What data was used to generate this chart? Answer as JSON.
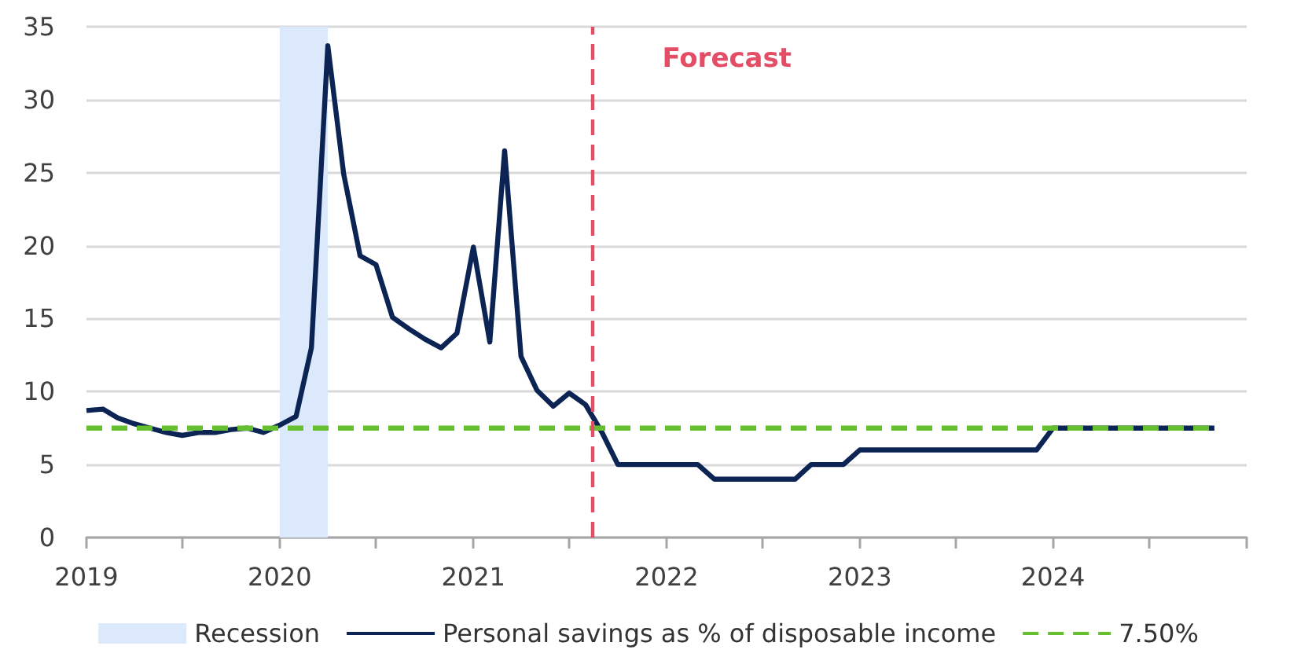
{
  "chart_data": {
    "type": "line",
    "x": [
      "2019-01",
      "2019-02",
      "2019-03",
      "2019-04",
      "2019-05",
      "2019-06",
      "2019-07",
      "2019-08",
      "2019-09",
      "2019-10",
      "2019-11",
      "2019-12",
      "2020-01",
      "2020-02",
      "2020-03",
      "2020-04",
      "2020-05",
      "2020-06",
      "2020-07",
      "2020-08",
      "2020-09",
      "2020-10",
      "2020-11",
      "2020-12",
      "2021-01",
      "2021-02",
      "2021-03",
      "2021-04",
      "2021-05",
      "2021-06",
      "2021-07",
      "2021-08",
      "2021-09",
      "2021-10",
      "2021-11",
      "2021-12",
      "2022-01",
      "2022-02",
      "2022-03",
      "2022-04",
      "2022-05",
      "2022-06",
      "2022-07",
      "2022-08",
      "2022-09",
      "2022-10",
      "2022-11",
      "2022-12",
      "2023-01",
      "2023-02",
      "2023-03",
      "2023-04",
      "2023-05",
      "2023-06",
      "2023-07",
      "2023-08",
      "2023-09",
      "2023-10",
      "2023-11",
      "2023-12",
      "2024-01",
      "2024-02",
      "2024-03",
      "2024-04",
      "2024-05",
      "2024-06",
      "2024-07",
      "2024-08",
      "2024-09",
      "2024-10",
      "2024-11"
    ],
    "series": [
      {
        "name": "Personal savings as % of disposable income",
        "color": "#0b2454",
        "values": [
          8.7,
          8.8,
          8.2,
          7.8,
          7.5,
          7.2,
          7.0,
          7.2,
          7.2,
          7.4,
          7.5,
          7.2,
          7.7,
          8.3,
          13.0,
          33.7,
          24.9,
          19.3,
          18.7,
          15.1,
          14.3,
          13.6,
          13.0,
          14.0,
          19.9,
          13.4,
          26.5,
          12.4,
          10.1,
          9.0,
          9.9,
          9.1,
          7.2,
          5.0,
          5.0,
          5.0,
          5.0,
          5.0,
          5.0,
          4.0,
          4.0,
          4.0,
          4.0,
          4.0,
          4.0,
          5.0,
          5.0,
          5.0,
          6.0,
          6.0,
          6.0,
          6.0,
          6.0,
          6.0,
          6.0,
          6.0,
          6.0,
          6.0,
          6.0,
          6.0,
          7.5,
          7.5,
          7.5,
          7.5,
          7.5,
          7.5,
          7.5,
          7.5,
          7.5,
          7.5,
          7.5
        ]
      },
      {
        "name": "7.50%",
        "color": "#66bf2f",
        "x": [
          "2019-01",
          "2024-11"
        ],
        "values": [
          7.5,
          7.5
        ],
        "line_style": "dashed"
      }
    ],
    "xlim": [
      "2019",
      "2025"
    ],
    "xticks": [
      "2019",
      {
        "value": "2019-07",
        "label": null
      },
      "2020",
      {
        "value": "2020-07",
        "label": null
      },
      "2021",
      {
        "value": "2021-07",
        "label": null
      },
      "2022",
      {
        "value": "2022-07",
        "label": null
      },
      "2023",
      {
        "value": "2023-07",
        "label": null
      },
      "2024",
      {
        "value": "2024-07",
        "label": null
      },
      {
        "value": "2025",
        "label": null
      }
    ],
    "ylim": [
      0,
      35
    ],
    "yticks": [
      0,
      5,
      10,
      15,
      20,
      25,
      30,
      35
    ],
    "grid": "y",
    "legend": "bottom",
    "bands": [
      {
        "axis": "x",
        "from": "2020-01",
        "to": "2020-04",
        "label": "Recession",
        "color": "#dce9fc"
      }
    ],
    "ref_lines": [
      {
        "axis": "x",
        "value": "2021-08-15",
        "label": "Forecast",
        "color": "#e44d66",
        "line_style": "dashed"
      }
    ]
  }
}
